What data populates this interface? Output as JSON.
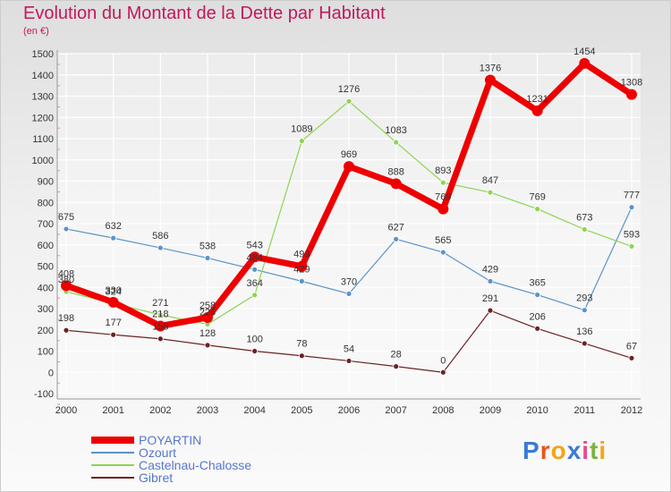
{
  "title": "Evolution du Montant de la Dette par Habitant",
  "subtitle": "(en €)",
  "logo": {
    "text": "Proxiti",
    "letters": [
      "P",
      "r",
      "o",
      "x",
      "i",
      "t",
      "i"
    ],
    "colors": [
      "#3a7bd5",
      "#e8561c",
      "#f2a516",
      "#3a7bd5",
      "#e84a8a",
      "#7cb342",
      "#f2a516"
    ]
  },
  "chart_data": {
    "type": "line",
    "title": "Evolution du Montant de la Dette par Habitant",
    "ylabel": "(en €)",
    "xlabel": "",
    "ylim": [
      -100,
      1500
    ],
    "yticks": [
      -100,
      0,
      100,
      200,
      300,
      400,
      500,
      600,
      700,
      800,
      900,
      1000,
      1100,
      1200,
      1300,
      1400,
      1500
    ],
    "grid": true,
    "legend_position": "bottom-left",
    "categories": [
      "2000",
      "2001",
      "2002",
      "2003",
      "2004",
      "2005",
      "2006",
      "2007",
      "2008",
      "2009",
      "2010",
      "2011",
      "2012"
    ],
    "series": [
      {
        "name": "POYARTIN",
        "color": "#ee0000",
        "values": [
          408,
          330,
          218,
          258,
          543,
          499,
          969,
          888,
          769,
          1376,
          1231,
          1454,
          1308
        ]
      },
      {
        "name": "Ozourt",
        "color": "#5b93c7",
        "values": [
          675,
          632,
          586,
          538,
          484,
          429,
          370,
          627,
          565,
          429,
          365,
          293,
          777
        ]
      },
      {
        "name": "Castelnau-Chalosse",
        "color": "#8ed453",
        "values": [
          380,
          324,
          271,
          226,
          364,
          1089,
          1276,
          1083,
          893,
          847,
          769,
          673,
          593
        ]
      },
      {
        "name": "Gibret",
        "color": "#6b2222",
        "values": [
          198,
          177,
          158,
          128,
          100,
          78,
          54,
          28,
          0,
          291,
          206,
          136,
          67
        ]
      }
    ]
  }
}
